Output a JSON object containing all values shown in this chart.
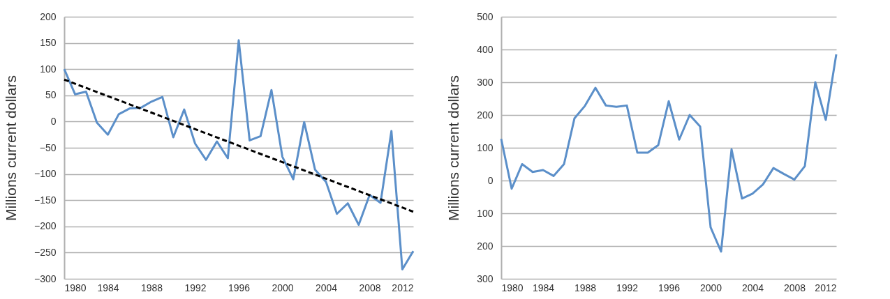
{
  "chart_data": [
    {
      "type": "line",
      "ylabel": "Millions current dollars",
      "x": [
        1980,
        1981,
        1982,
        1983,
        1984,
        1985,
        1986,
        1987,
        1988,
        1989,
        1990,
        1991,
        1992,
        1993,
        1994,
        1995,
        1996,
        1997,
        1998,
        1999,
        2000,
        2001,
        2002,
        2003,
        2004,
        2005,
        2006,
        2007,
        2008,
        2009,
        2010,
        2011,
        2012
      ],
      "series": [
        {
          "color": "#5b8fc9",
          "line_style": "solid",
          "values": [
            100,
            52,
            57,
            -2,
            -25,
            14,
            25,
            26,
            38,
            47,
            -30,
            23,
            -42,
            -73,
            -38,
            -70,
            155,
            -36,
            -28,
            60,
            -67,
            -110,
            -1,
            -92,
            -115,
            -176,
            -156,
            -197,
            -140,
            -155,
            -18,
            -282,
            -247
          ]
        },
        {
          "type": "line",
          "color": "#000000",
          "line_style": "dashed",
          "x": [
            1980,
            2012
          ],
          "values": [
            80,
            -172
          ]
        }
      ],
      "xlim": [
        1980,
        2012
      ],
      "xticks": [
        1980,
        1984,
        1988,
        1992,
        1996,
        2000,
        2004,
        2008,
        2012
      ],
      "ylim": [
        -300,
        200
      ],
      "yticks": [
        -300,
        -250,
        -200,
        -150,
        -100,
        -50,
        0,
        50,
        100,
        150,
        200
      ],
      "grid": "y",
      "marker": "none"
    },
    {
      "type": "line",
      "ylabel": "Millions current dollars",
      "x": [
        1980,
        1981,
        1982,
        1983,
        1984,
        1985,
        1986,
        1987,
        1988,
        1989,
        1990,
        1991,
        1992,
        1993,
        1994,
        1995,
        1996,
        1997,
        1998,
        1999,
        2000,
        2001,
        2002,
        2003,
        2004,
        2005,
        2006,
        2007,
        2008,
        2009,
        2010,
        2011,
        2012
      ],
      "series": [
        {
          "color": "#5b8fc9",
          "line_style": "solid",
          "values": [
            127,
            -25,
            50,
            26,
            32,
            14,
            50,
            190,
            228,
            283,
            229,
            225,
            229,
            85,
            85,
            108,
            242,
            125,
            200,
            165,
            -143,
            -217,
            95,
            -55,
            -40,
            -12,
            38,
            20,
            3,
            44,
            300,
            185,
            385
          ]
        }
      ],
      "xlim": [
        1980,
        2012
      ],
      "xticks": [
        1980,
        1984,
        1988,
        1992,
        1996,
        2000,
        2004,
        2008,
        2012
      ],
      "ylim": [
        -300,
        500
      ],
      "yticks": [
        {
          "value": -300,
          "label": "300"
        },
        {
          "value": -200,
          "label": "200"
        },
        {
          "value": -100,
          "label": "100"
        },
        0,
        100,
        200,
        300,
        400,
        500
      ],
      "grid": "y",
      "marker": "none"
    }
  ]
}
